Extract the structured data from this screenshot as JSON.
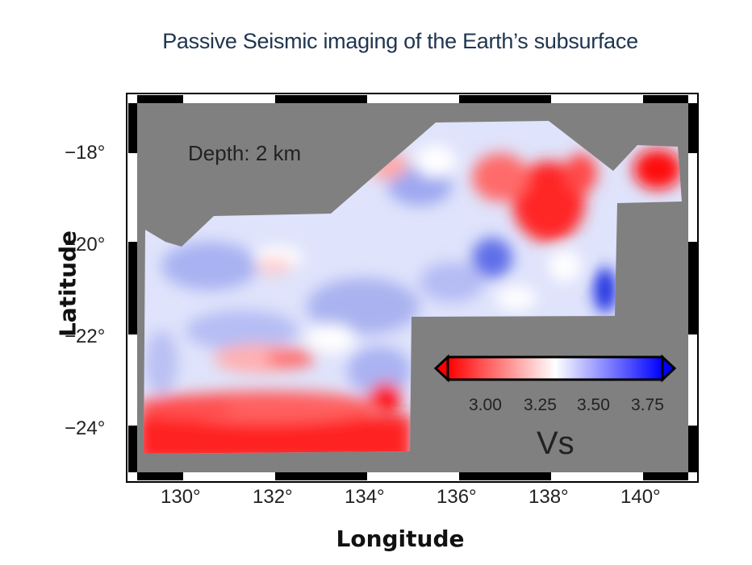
{
  "title": "Passive Seismic imaging of the Earth’s subsurface",
  "depth_label": "Depth: 2 km",
  "axes": {
    "xlabel": "Longitude",
    "ylabel": "Latitude",
    "x_ticks": [
      "130°",
      "132°",
      "134°",
      "136°",
      "138°",
      "140°"
    ],
    "y_ticks": [
      "−18°",
      "−20°",
      "−22°",
      "−24°"
    ]
  },
  "colorbar": {
    "label": "Vs",
    "ticks": [
      "3.00",
      "3.25",
      "3.50",
      "3.75"
    ],
    "colors": {
      "low": "#ff0000",
      "mid": "#ffffff",
      "high": "#0000ff"
    }
  },
  "colors": {
    "no_data": "#808080",
    "title": "#1f3550"
  }
}
